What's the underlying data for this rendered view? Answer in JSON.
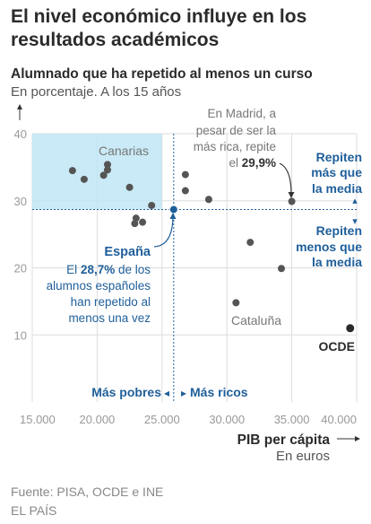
{
  "header": {
    "title": "El nivel económico influye en los resultados académicos",
    "subtitle": "Alumnado que ha repetido al menos un curso",
    "unit": "En porcentaje. A los 15 años"
  },
  "footer": {
    "source": "Fuente: PISA, OCDE e INE",
    "brand": "EL PAÍS"
  },
  "colors": {
    "accent": "#1f5f9a",
    "highlight": "#bfe6f5",
    "points": "#555555",
    "oecd": "#2a2a2a",
    "grid": "#dddddd",
    "axis_text": "#999999"
  },
  "annotations": {
    "canarias": "Canarias",
    "cataluna": "Cataluña",
    "madrid_l1": "En Madrid, a",
    "madrid_l2": "pesar de ser la",
    "madrid_l3": "más rica, repite",
    "madrid_l4a": "el ",
    "madrid_l4b": "29,9%",
    "espana": "España",
    "espana_l1a": "El ",
    "espana_l1b": "28,7%",
    "espana_l1c": " de los",
    "espana_l2": "alumnos españoles",
    "espana_l3": "han repetido al",
    "espana_l4": "menos una vez",
    "above_l1": "Repiten",
    "above_l2": "más que",
    "above_l3": "la media",
    "below_l1": "Repiten",
    "below_l2": "menos que",
    "below_l3": "la media",
    "poorer": "Más pobres",
    "richer": "Más ricos",
    "oecd": "OCDE",
    "arrow_left": "◂",
    "arrow_right": "▸",
    "arrow_up": "▴",
    "arrow_down": "▾"
  },
  "chart_data": {
    "type": "scatter",
    "title": "El nivel económico influye en los resultados académicos",
    "ylabel": "Alumnado que ha repetido al menos un curso",
    "yunit": "En porcentaje. A los 15 años",
    "xlabel": "PIB per cápita",
    "xunit": "En euros",
    "xlim": [
      15000,
      40000
    ],
    "ylim": [
      0,
      40
    ],
    "xticks": [
      15000,
      20000,
      25000,
      30000,
      35000,
      40000
    ],
    "xtick_labels": [
      "15.000",
      "20.000",
      "25.000",
      "30.000",
      "35.000",
      "40.000"
    ],
    "yticks": [
      10,
      20,
      30,
      40
    ],
    "ytick_labels": [
      "10",
      "20",
      "30",
      "40"
    ],
    "grid": true,
    "reference": {
      "x": 25900,
      "y": 28.7
    },
    "highlight_region": {
      "x": [
        15000,
        25000
      ],
      "y": [
        28.7,
        40
      ]
    },
    "points": [
      {
        "x": 18100,
        "y": 34.5
      },
      {
        "x": 19000,
        "y": 33.2
      },
      {
        "x": 20500,
        "y": 33.8
      },
      {
        "x": 20800,
        "y": 34.6
      },
      {
        "x": 20800,
        "y": 35.4
      },
      {
        "x": 22500,
        "y": 32.0
      },
      {
        "x": 22900,
        "y": 26.6
      },
      {
        "x": 23000,
        "y": 27.4
      },
      {
        "x": 23500,
        "y": 26.8
      },
      {
        "x": 24200,
        "y": 29.3
      },
      {
        "x": 26800,
        "y": 33.9
      },
      {
        "x": 26800,
        "y": 31.5
      },
      {
        "x": 28600,
        "y": 30.2
      },
      {
        "x": 30700,
        "y": 14.8
      },
      {
        "x": 31800,
        "y": 23.8
      },
      {
        "x": 34200,
        "y": 19.9
      },
      {
        "x": 35000,
        "y": 29.9
      }
    ],
    "labeled_points": [
      {
        "label": "España",
        "x": 25900,
        "y": 28.7,
        "role": "spain"
      },
      {
        "label": "OCDE",
        "x": 39500,
        "y": 11.0,
        "role": "oecd"
      }
    ]
  }
}
